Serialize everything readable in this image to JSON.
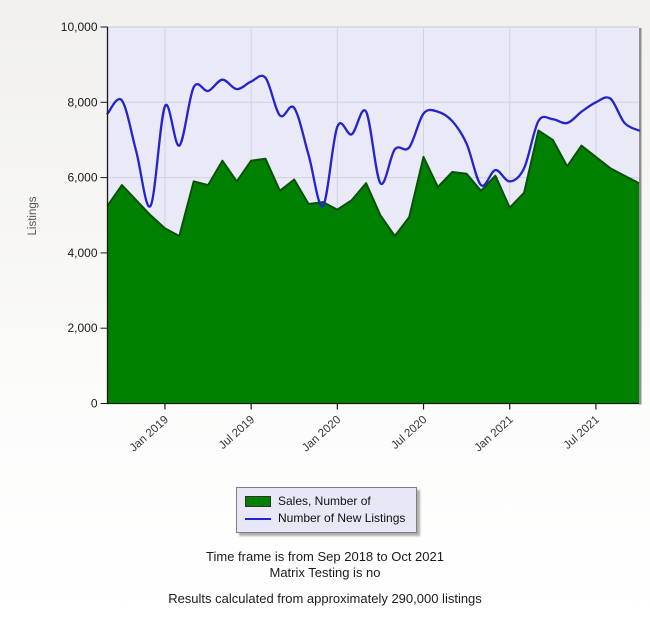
{
  "chart_data": {
    "type": "area",
    "title": "",
    "xlabel": "",
    "ylabel": "Listings",
    "ylim": [
      0,
      10000
    ],
    "ytick_interval": 2000,
    "ytick_labels": [
      "0",
      "2,000",
      "4,000",
      "6,000",
      "8,000",
      "10,000"
    ],
    "grid": true,
    "legend_position": "bottom",
    "categories": [
      "Sep 2018",
      "Oct 2018",
      "Nov 2018",
      "Dec 2018",
      "Jan 2019",
      "Feb 2019",
      "Mar 2019",
      "Apr 2019",
      "May 2019",
      "Jun 2019",
      "Jul 2019",
      "Aug 2019",
      "Sep 2019",
      "Oct 2019",
      "Nov 2019",
      "Dec 2019",
      "Jan 2020",
      "Feb 2020",
      "Mar 2020",
      "Apr 2020",
      "May 2020",
      "Jun 2020",
      "Jul 2020",
      "Aug 2020",
      "Sep 2020",
      "Oct 2020",
      "Nov 2020",
      "Dec 2020",
      "Jan 2021",
      "Feb 2021",
      "Mar 2021",
      "Apr 2021",
      "May 2021",
      "Jun 2021",
      "Jul 2021",
      "Aug 2021",
      "Sep 2021",
      "Oct 2021"
    ],
    "x_ticks": [
      {
        "index": 4,
        "label": "Jan 2019"
      },
      {
        "index": 10,
        "label": "Jul 2019"
      },
      {
        "index": 16,
        "label": "Jan 2020"
      },
      {
        "index": 22,
        "label": "Jul 2020"
      },
      {
        "index": 28,
        "label": "Jan 2021"
      },
      {
        "index": 34,
        "label": "Jul 2021"
      }
    ],
    "series": [
      {
        "name": "Sales, Number of",
        "type": "area",
        "color": "#008000",
        "values": [
          5250,
          5800,
          5400,
          5000,
          4650,
          4450,
          5900,
          5800,
          6450,
          5900,
          6450,
          6500,
          5650,
          5950,
          5300,
          5350,
          5150,
          5400,
          5850,
          5000,
          4450,
          4950,
          6550,
          5750,
          6150,
          6100,
          5650,
          6050,
          5200,
          5600,
          7250,
          7000,
          6300,
          6850,
          6550,
          6250,
          6050,
          5850
        ]
      },
      {
        "name": "Number of New Listings",
        "type": "line",
        "color": "#2424cc",
        "values": [
          7700,
          8050,
          6700,
          5250,
          7900,
          6850,
          8400,
          8300,
          8600,
          8350,
          8550,
          8650,
          7650,
          7850,
          6600,
          5250,
          7350,
          7150,
          7750,
          5850,
          6750,
          6800,
          7700,
          7750,
          7500,
          6900,
          5800,
          6200,
          5900,
          6250,
          7500,
          7550,
          7450,
          7750,
          8000,
          8100,
          7450,
          7250
        ]
      }
    ],
    "colors": {
      "plot_bg": "#e9e9f8",
      "grid": "#d2d2e2",
      "axis": "#1a1a1a",
      "area_fill": "#008000",
      "area_edge": "#0a520a",
      "line": "#2424cc",
      "plot_shadow": "#909090",
      "tick_label": "#1a1a1a",
      "x_label": "#333333",
      "ylabel_color": "#555555"
    }
  },
  "legend": {
    "items": [
      {
        "label": "Sales, Number of"
      },
      {
        "label": "Number of New Listings"
      }
    ]
  },
  "footer": {
    "line1": "Time frame is from Sep 2018 to Oct 2021",
    "line2": "Matrix Testing is no",
    "line3": "Results calculated from approximately 290,000 listings"
  }
}
